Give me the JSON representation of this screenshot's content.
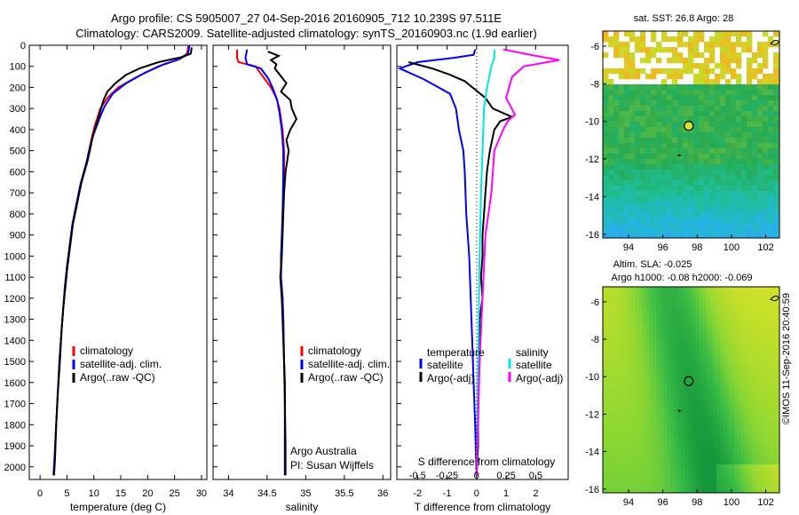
{
  "header": {
    "line1": "Argo profile: CS 5905007_27 04-Sep-2016 20160905_712 10.239S 97.511E",
    "line2": "Climatology: CARS2009. Satellite-adjusted climatology: synTS_20160903.nc (1.9d earlier)"
  },
  "stamp": "©IMOS 11-Sep-2016 20:40:59",
  "colors": {
    "climatology": "#ff0000",
    "satellite": "#0000ff",
    "argo": "#000000",
    "sat_salinity": "#00e5e5",
    "argo_salinity": "#ff00ff"
  },
  "chart_data": [
    {
      "type": "line",
      "name": "temperature-profile",
      "xlabel": "temperature (deg C)",
      "ylabel": "",
      "xlim": [
        -2,
        31
      ],
      "ylim": [
        2060,
        0
      ],
      "xticks": [
        0,
        5,
        10,
        15,
        20,
        25,
        30
      ],
      "yticks": [
        0,
        100,
        200,
        300,
        400,
        500,
        600,
        700,
        800,
        900,
        1000,
        1100,
        1200,
        1300,
        1400,
        1500,
        1600,
        1700,
        1800,
        1900,
        2000
      ],
      "legend": [
        "climatology",
        "satellite-adj. clim.",
        "Argo(..raw -QC)"
      ],
      "series": [
        {
          "name": "climatology",
          "color": "#ff0000",
          "points": [
            [
              27.6,
              0
            ],
            [
              27.3,
              40
            ],
            [
              25.5,
              70
            ],
            [
              22,
              100
            ],
            [
              18,
              150
            ],
            [
              14.5,
              200
            ],
            [
              12.5,
              250
            ],
            [
              11.2,
              300
            ],
            [
              10.2,
              380
            ],
            [
              9.5,
              450
            ],
            [
              8.7,
              550
            ],
            [
              7.6,
              650
            ],
            [
              6.8,
              750
            ],
            [
              6,
              850
            ],
            [
              5.5,
              950
            ],
            [
              5,
              1050
            ],
            [
              4.6,
              1150
            ],
            [
              4.3,
              1250
            ],
            [
              4,
              1350
            ],
            [
              3.6,
              1500
            ],
            [
              3.3,
              1650
            ],
            [
              3,
              1800
            ],
            [
              2.7,
              1950
            ],
            [
              2.5,
              2040
            ]
          ]
        },
        {
          "name": "satellite-adj. clim.",
          "color": "#0000ff",
          "points": [
            [
              27.8,
              0
            ],
            [
              27.5,
              40
            ],
            [
              26,
              65
            ],
            [
              23,
              90
            ],
            [
              19.5,
              130
            ],
            [
              16,
              180
            ],
            [
              13.5,
              230
            ],
            [
              12,
              290
            ],
            [
              11,
              350
            ],
            [
              10,
              420
            ],
            [
              9.4,
              470
            ],
            [
              8.6,
              560
            ],
            [
              7.5,
              660
            ],
            [
              6.8,
              750
            ],
            [
              6,
              850
            ],
            [
              5.5,
              950
            ],
            [
              5,
              1050
            ],
            [
              4.6,
              1150
            ],
            [
              4.3,
              1250
            ],
            [
              4,
              1350
            ],
            [
              3.6,
              1500
            ],
            [
              3.3,
              1650
            ],
            [
              3,
              1800
            ],
            [
              2.7,
              1950
            ],
            [
              2.5,
              2040
            ]
          ]
        },
        {
          "name": "Argo(..raw -QC)",
          "color": "#000000",
          "points": [
            [
              28.2,
              10
            ],
            [
              28,
              40
            ],
            [
              26.5,
              55
            ],
            [
              22,
              80
            ],
            [
              18.5,
              110
            ],
            [
              16,
              140
            ],
            [
              14,
              180
            ],
            [
              12.5,
              220
            ],
            [
              11.8,
              260
            ],
            [
              11,
              330
            ],
            [
              10.4,
              380
            ],
            [
              9.8,
              430
            ],
            [
              9.5,
              470
            ],
            [
              8.8,
              550
            ],
            [
              7.7,
              650
            ],
            [
              6.9,
              750
            ],
            [
              6.1,
              850
            ],
            [
              5.6,
              950
            ],
            [
              5.1,
              1050
            ],
            [
              4.7,
              1150
            ],
            [
              4.3,
              1250
            ],
            [
              4,
              1350
            ],
            [
              3.7,
              1500
            ],
            [
              3.3,
              1650
            ],
            [
              3,
              1800
            ],
            [
              2.8,
              1950
            ],
            [
              2.6,
              2040
            ]
          ]
        }
      ]
    },
    {
      "type": "line",
      "name": "salinity-profile",
      "xlabel": "salinity",
      "ylabel": "",
      "xlim": [
        33.8,
        36.1
      ],
      "ylim": [
        2060,
        0
      ],
      "xticks": [
        34,
        34.5,
        35,
        35.5,
        36
      ],
      "legend": [
        "climatology",
        "satellite-adj. clim.",
        "Argo(..raw -QC)"
      ],
      "annotation": [
        "Argo Australia",
        "PI: Susan Wijffels"
      ],
      "series": [
        {
          "name": "climatology",
          "color": "#ff0000",
          "points": [
            [
              34.11,
              20
            ],
            [
              34.11,
              60
            ],
            [
              34.13,
              80
            ],
            [
              34.35,
              100
            ],
            [
              34.45,
              150
            ],
            [
              34.55,
              200
            ],
            [
              34.62,
              250
            ],
            [
              34.66,
              300
            ],
            [
              34.7,
              400
            ],
            [
              34.72,
              500
            ],
            [
              34.72,
              600
            ],
            [
              34.7,
              800
            ],
            [
              34.69,
              1000
            ],
            [
              34.68,
              1100
            ],
            [
              34.7,
              1200
            ],
            [
              34.71,
              1300
            ],
            [
              34.72,
              1500
            ],
            [
              34.73,
              1700
            ],
            [
              34.73,
              1900
            ],
            [
              34.73,
              2040
            ]
          ]
        },
        {
          "name": "satellite-adj. clim.",
          "color": "#0000ff",
          "points": [
            [
              34.24,
              20
            ],
            [
              34.22,
              60
            ],
            [
              34.24,
              90
            ],
            [
              34.42,
              110
            ],
            [
              34.52,
              160
            ],
            [
              34.58,
              210
            ],
            [
              34.63,
              260
            ],
            [
              34.66,
              320
            ],
            [
              34.69,
              400
            ],
            [
              34.71,
              500
            ],
            [
              34.71,
              600
            ],
            [
              34.7,
              800
            ],
            [
              34.68,
              1000
            ],
            [
              34.68,
              1100
            ],
            [
              34.7,
              1200
            ],
            [
              34.71,
              1300
            ],
            [
              34.72,
              1500
            ],
            [
              34.73,
              1700
            ],
            [
              34.74,
              1900
            ],
            [
              34.74,
              2040
            ]
          ]
        },
        {
          "name": "Argo(..raw -QC)",
          "color": "#000000",
          "points": [
            [
              34.51,
              30
            ],
            [
              34.65,
              50
            ],
            [
              34.55,
              70
            ],
            [
              34.62,
              90
            ],
            [
              34.6,
              110
            ],
            [
              34.75,
              180
            ],
            [
              34.68,
              220
            ],
            [
              34.8,
              260
            ],
            [
              34.82,
              300
            ],
            [
              34.88,
              350
            ],
            [
              34.8,
              400
            ],
            [
              34.75,
              450
            ],
            [
              34.78,
              500
            ],
            [
              34.74,
              600
            ],
            [
              34.72,
              700
            ],
            [
              34.71,
              800
            ],
            [
              34.7,
              900
            ],
            [
              34.69,
              1000
            ],
            [
              34.67,
              1100
            ],
            [
              34.69,
              1200
            ],
            [
              34.7,
              1300
            ],
            [
              34.71,
              1400
            ],
            [
              34.72,
              1500
            ],
            [
              34.73,
              1600
            ],
            [
              34.73,
              1700
            ],
            [
              34.73,
              1800
            ],
            [
              34.73,
              1900
            ],
            [
              34.73,
              2040
            ]
          ]
        }
      ]
    },
    {
      "type": "line",
      "name": "difference-profile",
      "xlabel": "T difference from climatology",
      "xlabel2": "S difference from climatology",
      "xlim": [
        -2.7,
        3.1
      ],
      "ylim": [
        2060,
        0
      ],
      "xticks": [
        -2,
        -1,
        0,
        1,
        2
      ],
      "xticks2": [
        -0.5,
        -0.25,
        0,
        0.25,
        0.5
      ],
      "legend_temperature": [
        "temperature",
        "satellite",
        "Argo(-adj)"
      ],
      "legend_salinity": [
        "salinity",
        "satellite",
        "Argo(-adj)"
      ],
      "series": [
        {
          "name": "satellite",
          "color": "#0000ff",
          "points": [
            [
              -0.05,
              20
            ],
            [
              -0.1,
              45
            ],
            [
              -0.8,
              60
            ],
            [
              -2.0,
              80
            ],
            [
              -2.6,
              110
            ],
            [
              -1.8,
              160
            ],
            [
              -0.9,
              230
            ],
            [
              -0.7,
              300
            ],
            [
              -0.6,
              400
            ],
            [
              -0.45,
              500
            ],
            [
              -0.4,
              600
            ],
            [
              -0.35,
              800
            ],
            [
              -0.25,
              1000
            ],
            [
              -0.2,
              1200
            ],
            [
              -0.15,
              1400
            ],
            [
              -0.1,
              1600
            ],
            [
              -0.05,
              1800
            ],
            [
              0,
              2040
            ]
          ]
        },
        {
          "name": "Argo(-adj)",
          "color": "#000000",
          "points": [
            [
              -2.3,
              80
            ],
            [
              -1.5,
              110
            ],
            [
              -0.9,
              140
            ],
            [
              -0.4,
              170
            ],
            [
              0.3,
              250
            ],
            [
              0.55,
              300
            ],
            [
              1.2,
              340
            ],
            [
              0.8,
              360
            ],
            [
              0.6,
              400
            ],
            [
              0.45,
              500
            ],
            [
              0.35,
              600
            ],
            [
              0.3,
              700
            ],
            [
              0.25,
              800
            ],
            [
              0.2,
              900
            ],
            [
              0.2,
              1000
            ],
            [
              0.15,
              1100
            ],
            [
              0.2,
              1200
            ],
            [
              0.1,
              1300
            ],
            [
              0.1,
              1500
            ],
            [
              0.05,
              1700
            ],
            [
              0.05,
              1900
            ],
            [
              0,
              2040
            ]
          ]
        },
        {
          "name": "satellite",
          "color": "#00e5e5",
          "points": [
            [
              0.6,
              20
            ],
            [
              0.6,
              60
            ],
            [
              0.5,
              100
            ],
            [
              0.35,
              200
            ],
            [
              0.25,
              300
            ],
            [
              0.2,
              500
            ],
            [
              0.15,
              700
            ],
            [
              0.1,
              1000
            ],
            [
              0.05,
              1500
            ],
            [
              0,
              2040
            ]
          ]
        },
        {
          "name": "Argo(-adj)",
          "color": "#ff00ff",
          "points": [
            [
              0.9,
              20
            ],
            [
              2.0,
              50
            ],
            [
              2.8,
              70
            ],
            [
              1.6,
              100
            ],
            [
              1.2,
              150
            ],
            [
              1.0,
              250
            ],
            [
              1.3,
              330
            ],
            [
              1.05,
              360
            ],
            [
              0.9,
              400
            ],
            [
              0.6,
              500
            ],
            [
              0.5,
              700
            ],
            [
              0.3,
              900
            ],
            [
              0.2,
              1200
            ],
            [
              0.1,
              1500
            ],
            [
              0.05,
              1800
            ],
            [
              0,
              2040
            ]
          ]
        }
      ]
    },
    {
      "type": "heatmap",
      "name": "sst-map",
      "title": "sat. SST: 26.8 Argo: 28",
      "xlim": [
        92.5,
        102.8
      ],
      "ylim": [
        -16.2,
        -5.2
      ],
      "xticks": [
        94,
        96,
        98,
        100,
        102
      ],
      "yticks": [
        -6,
        -8,
        -10,
        -12,
        -14,
        -16
      ],
      "marker": {
        "lon": 97.511,
        "lat": -10.239
      }
    },
    {
      "type": "heatmap",
      "name": "sla-map",
      "title": "Altim. SLA: -0.025",
      "subtitle": "Argo h1000: -0.08 h2000: -0.069",
      "xlim": [
        92.5,
        102.8
      ],
      "ylim": [
        -16.2,
        -5.2
      ],
      "xticks": [
        94,
        96,
        98,
        100,
        102
      ],
      "yticks": [
        -6,
        -8,
        -10,
        -12,
        -14,
        -16
      ],
      "marker": {
        "lon": 97.511,
        "lat": -10.239
      }
    }
  ]
}
